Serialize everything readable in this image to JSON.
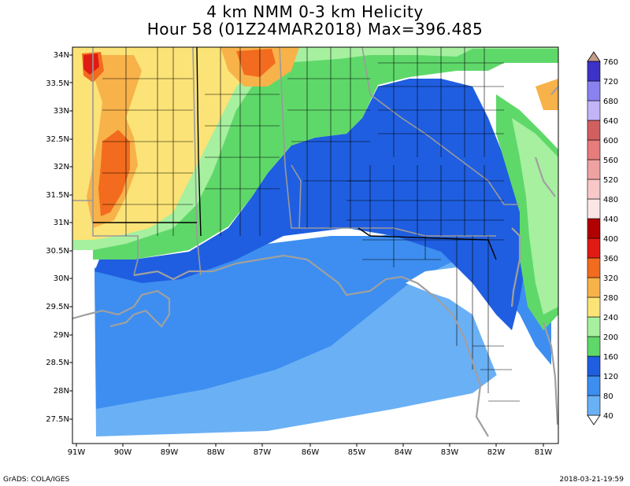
{
  "title": {
    "line1": "4 km NMM 0-3 km Helicity",
    "line2": "Hour 58 (01Z24MAR2018) Max=396.485"
  },
  "map": {
    "lat_labels": [
      "34N",
      "33.5N",
      "33N",
      "32.5N",
      "32N",
      "31.5N",
      "31N",
      "30.5N",
      "30N",
      "29.5N",
      "29N",
      "28.5N",
      "28N",
      "27.5N"
    ],
    "lon_labels": [
      "91W",
      "90W",
      "89W",
      "88W",
      "87W",
      "86W",
      "85W",
      "84W",
      "83W",
      "82W",
      "81W"
    ]
  },
  "colorbar": {
    "levels": [
      "40",
      "80",
      "120",
      "160",
      "200",
      "240",
      "280",
      "320",
      "360",
      "400",
      "440",
      "480",
      "520",
      "560",
      "600",
      "640",
      "680",
      "720",
      "760"
    ],
    "colors": [
      "#ffffff",
      "#6ab0f5",
      "#3d8ef0",
      "#1f5ee0",
      "#5fd86a",
      "#a6f0a0",
      "#fbe377",
      "#f8b24a",
      "#f26b1e",
      "#e01b14",
      "#b00000",
      "#fbe6e6",
      "#f8c8c8",
      "#efa2a2",
      "#e67c7c",
      "#d25f5f",
      "#c2b4f7",
      "#8a82f0",
      "#3c32c8",
      "#c49a8a"
    ]
  },
  "footer": {
    "left": "GrADS: COLA/IGES",
    "right": "2018-03-21-19:59"
  }
}
